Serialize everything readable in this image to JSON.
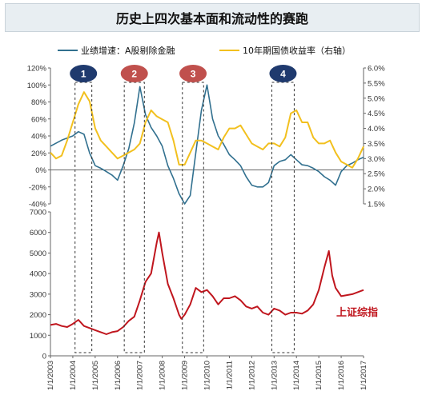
{
  "title": "历史上四次基本面和流动性的赛跑",
  "colors": {
    "growth": "#31708f",
    "yield": "#f2c01e",
    "index": "#c0161e",
    "badge_blue": "#1f3a6e",
    "badge_red": "#c0504d",
    "axis": "#666666"
  },
  "chart_data": [
    {
      "type": "line",
      "legend_placement": "top",
      "grid": false,
      "xlim": [
        2003.0,
        2017.0
      ],
      "y_left": {
        "lim": [
          -40,
          120
        ],
        "ticks": [
          "-40%",
          "-20%",
          "0%",
          "20%",
          "40%",
          "60%",
          "80%",
          "100%",
          "120%"
        ]
      },
      "y_right": {
        "lim": [
          1.5,
          6.0
        ],
        "ticks": [
          "1.5%",
          "2.0%",
          "2.5%",
          "3.0%",
          "3.5%",
          "4.0%",
          "4.5%",
          "5.0%",
          "5.5%",
          "6.0%"
        ]
      },
      "series": [
        {
          "name": "业绩增速：A股剔除金融",
          "axis": "left",
          "color": "#31708f",
          "x": [
            2003.0,
            2003.5,
            2004.0,
            2004.25,
            2004.5,
            2004.75,
            2005.0,
            2005.25,
            2005.5,
            2005.75,
            2006.0,
            2006.25,
            2006.5,
            2006.75,
            2007.0,
            2007.25,
            2007.5,
            2007.75,
            2008.0,
            2008.25,
            2008.5,
            2008.75,
            2009.0,
            2009.25,
            2009.5,
            2009.75,
            2010.0,
            2010.25,
            2010.5,
            2010.75,
            2011.0,
            2011.25,
            2011.5,
            2011.75,
            2012.0,
            2012.25,
            2012.5,
            2012.75,
            2013.0,
            2013.25,
            2013.5,
            2013.75,
            2014.0,
            2014.25,
            2014.5,
            2014.75,
            2015.0,
            2015.25,
            2015.5,
            2015.75,
            2016.0,
            2016.25,
            2016.5,
            2016.75,
            2017.0
          ],
          "values": [
            28,
            35,
            40,
            45,
            42,
            20,
            5,
            2,
            -2,
            -6,
            -12,
            5,
            25,
            55,
            98,
            65,
            50,
            40,
            28,
            5,
            -10,
            -28,
            -40,
            -30,
            20,
            70,
            100,
            60,
            40,
            30,
            18,
            12,
            5,
            -8,
            -18,
            -20,
            -20,
            -15,
            5,
            10,
            12,
            18,
            12,
            6,
            5,
            2,
            -2,
            -8,
            -12,
            -18,
            -2,
            5,
            8,
            12,
            15
          ]
        },
        {
          "name": "10年期国债收益率（右轴）",
          "axis": "right",
          "color": "#f2c01e",
          "x": [
            2003.0,
            2003.25,
            2003.5,
            2003.75,
            2004.0,
            2004.25,
            2004.5,
            2004.75,
            2005.0,
            2005.25,
            2005.5,
            2005.75,
            2006.0,
            2006.25,
            2006.5,
            2006.75,
            2007.0,
            2007.25,
            2007.5,
            2007.75,
            2008.0,
            2008.25,
            2008.5,
            2008.75,
            2009.0,
            2009.25,
            2009.5,
            2009.75,
            2010.0,
            2010.25,
            2010.5,
            2010.75,
            2011.0,
            2011.25,
            2011.5,
            2011.75,
            2012.0,
            2012.25,
            2012.5,
            2012.75,
            2013.0,
            2013.25,
            2013.5,
            2013.75,
            2014.0,
            2014.25,
            2014.5,
            2014.75,
            2015.0,
            2015.25,
            2015.5,
            2015.75,
            2016.0,
            2016.25,
            2016.5,
            2016.75,
            2017.0
          ],
          "values": [
            3.2,
            3.0,
            3.1,
            3.6,
            4.2,
            4.8,
            5.2,
            4.9,
            4.0,
            3.6,
            3.4,
            3.2,
            3.0,
            3.1,
            3.2,
            3.3,
            3.5,
            4.2,
            4.6,
            4.4,
            4.3,
            4.2,
            3.6,
            2.8,
            2.8,
            3.2,
            3.6,
            3.6,
            3.5,
            3.4,
            3.3,
            3.7,
            4.0,
            4.0,
            4.1,
            3.8,
            3.5,
            3.4,
            3.3,
            3.5,
            3.5,
            3.4,
            3.7,
            4.5,
            4.6,
            4.2,
            4.2,
            3.7,
            3.5,
            3.5,
            3.6,
            3.2,
            2.9,
            2.8,
            2.7,
            3.0,
            3.4
          ]
        }
      ],
      "badges": [
        {
          "label": "1",
          "color": "#1f3a6e",
          "x_start": 2004.1,
          "x_end": 2004.85
        },
        {
          "label": "2",
          "color": "#c0504d",
          "x_start": 2006.3,
          "x_end": 2007.2
        },
        {
          "label": "3",
          "color": "#c0504d",
          "x_start": 2008.9,
          "x_end": 2009.85
        },
        {
          "label": "4",
          "color": "#1f3a6e",
          "x_start": 2012.9,
          "x_end": 2013.9
        }
      ]
    },
    {
      "type": "line",
      "grid": false,
      "xlim": [
        2003.0,
        2017.0
      ],
      "ylim": [
        0,
        7000
      ],
      "y_ticks": [
        "0",
        "1000",
        "2000",
        "3000",
        "4000",
        "5000",
        "6000",
        "7000"
      ],
      "x_ticks": [
        "1/1/2003",
        "1/1/2004",
        "1/1/2005",
        "1/1/2006",
        "1/1/2007",
        "1/1/2008",
        "1/1/2009",
        "1/1/2010",
        "1/1/2011",
        "1/1/2012",
        "1/1/2013",
        "1/1/2014",
        "1/1/2015",
        "1/1/2016",
        "1/1/2017"
      ],
      "series": [
        {
          "name": "上证综指",
          "color": "#c0161e",
          "x": [
            2003.0,
            2003.25,
            2003.5,
            2003.75,
            2004.0,
            2004.25,
            2004.5,
            2004.75,
            2005.0,
            2005.25,
            2005.5,
            2005.75,
            2006.0,
            2006.25,
            2006.5,
            2006.75,
            2007.0,
            2007.25,
            2007.5,
            2007.75,
            2007.85,
            2008.0,
            2008.25,
            2008.5,
            2008.75,
            2008.85,
            2009.0,
            2009.25,
            2009.5,
            2009.75,
            2010.0,
            2010.25,
            2010.5,
            2010.75,
            2011.0,
            2011.25,
            2011.5,
            2011.75,
            2012.0,
            2012.25,
            2012.5,
            2012.75,
            2013.0,
            2013.25,
            2013.5,
            2013.75,
            2014.0,
            2014.25,
            2014.5,
            2014.75,
            2015.0,
            2015.25,
            2015.45,
            2015.6,
            2015.75,
            2016.0,
            2016.25,
            2016.5,
            2016.75,
            2017.0
          ],
          "values": [
            1500,
            1550,
            1450,
            1400,
            1550,
            1750,
            1450,
            1350,
            1250,
            1150,
            1050,
            1150,
            1200,
            1400,
            1700,
            1900,
            2700,
            3600,
            4000,
            5500,
            6000,
            5000,
            3500,
            2800,
            2000,
            1800,
            2000,
            2500,
            3300,
            3100,
            3200,
            2900,
            2500,
            2800,
            2800,
            2900,
            2700,
            2400,
            2300,
            2400,
            2100,
            2000,
            2300,
            2200,
            2000,
            2100,
            2100,
            2050,
            2200,
            2500,
            3200,
            4300,
            5100,
            3900,
            3300,
            2900,
            2950,
            3000,
            3100,
            3200
          ]
        }
      ]
    }
  ]
}
